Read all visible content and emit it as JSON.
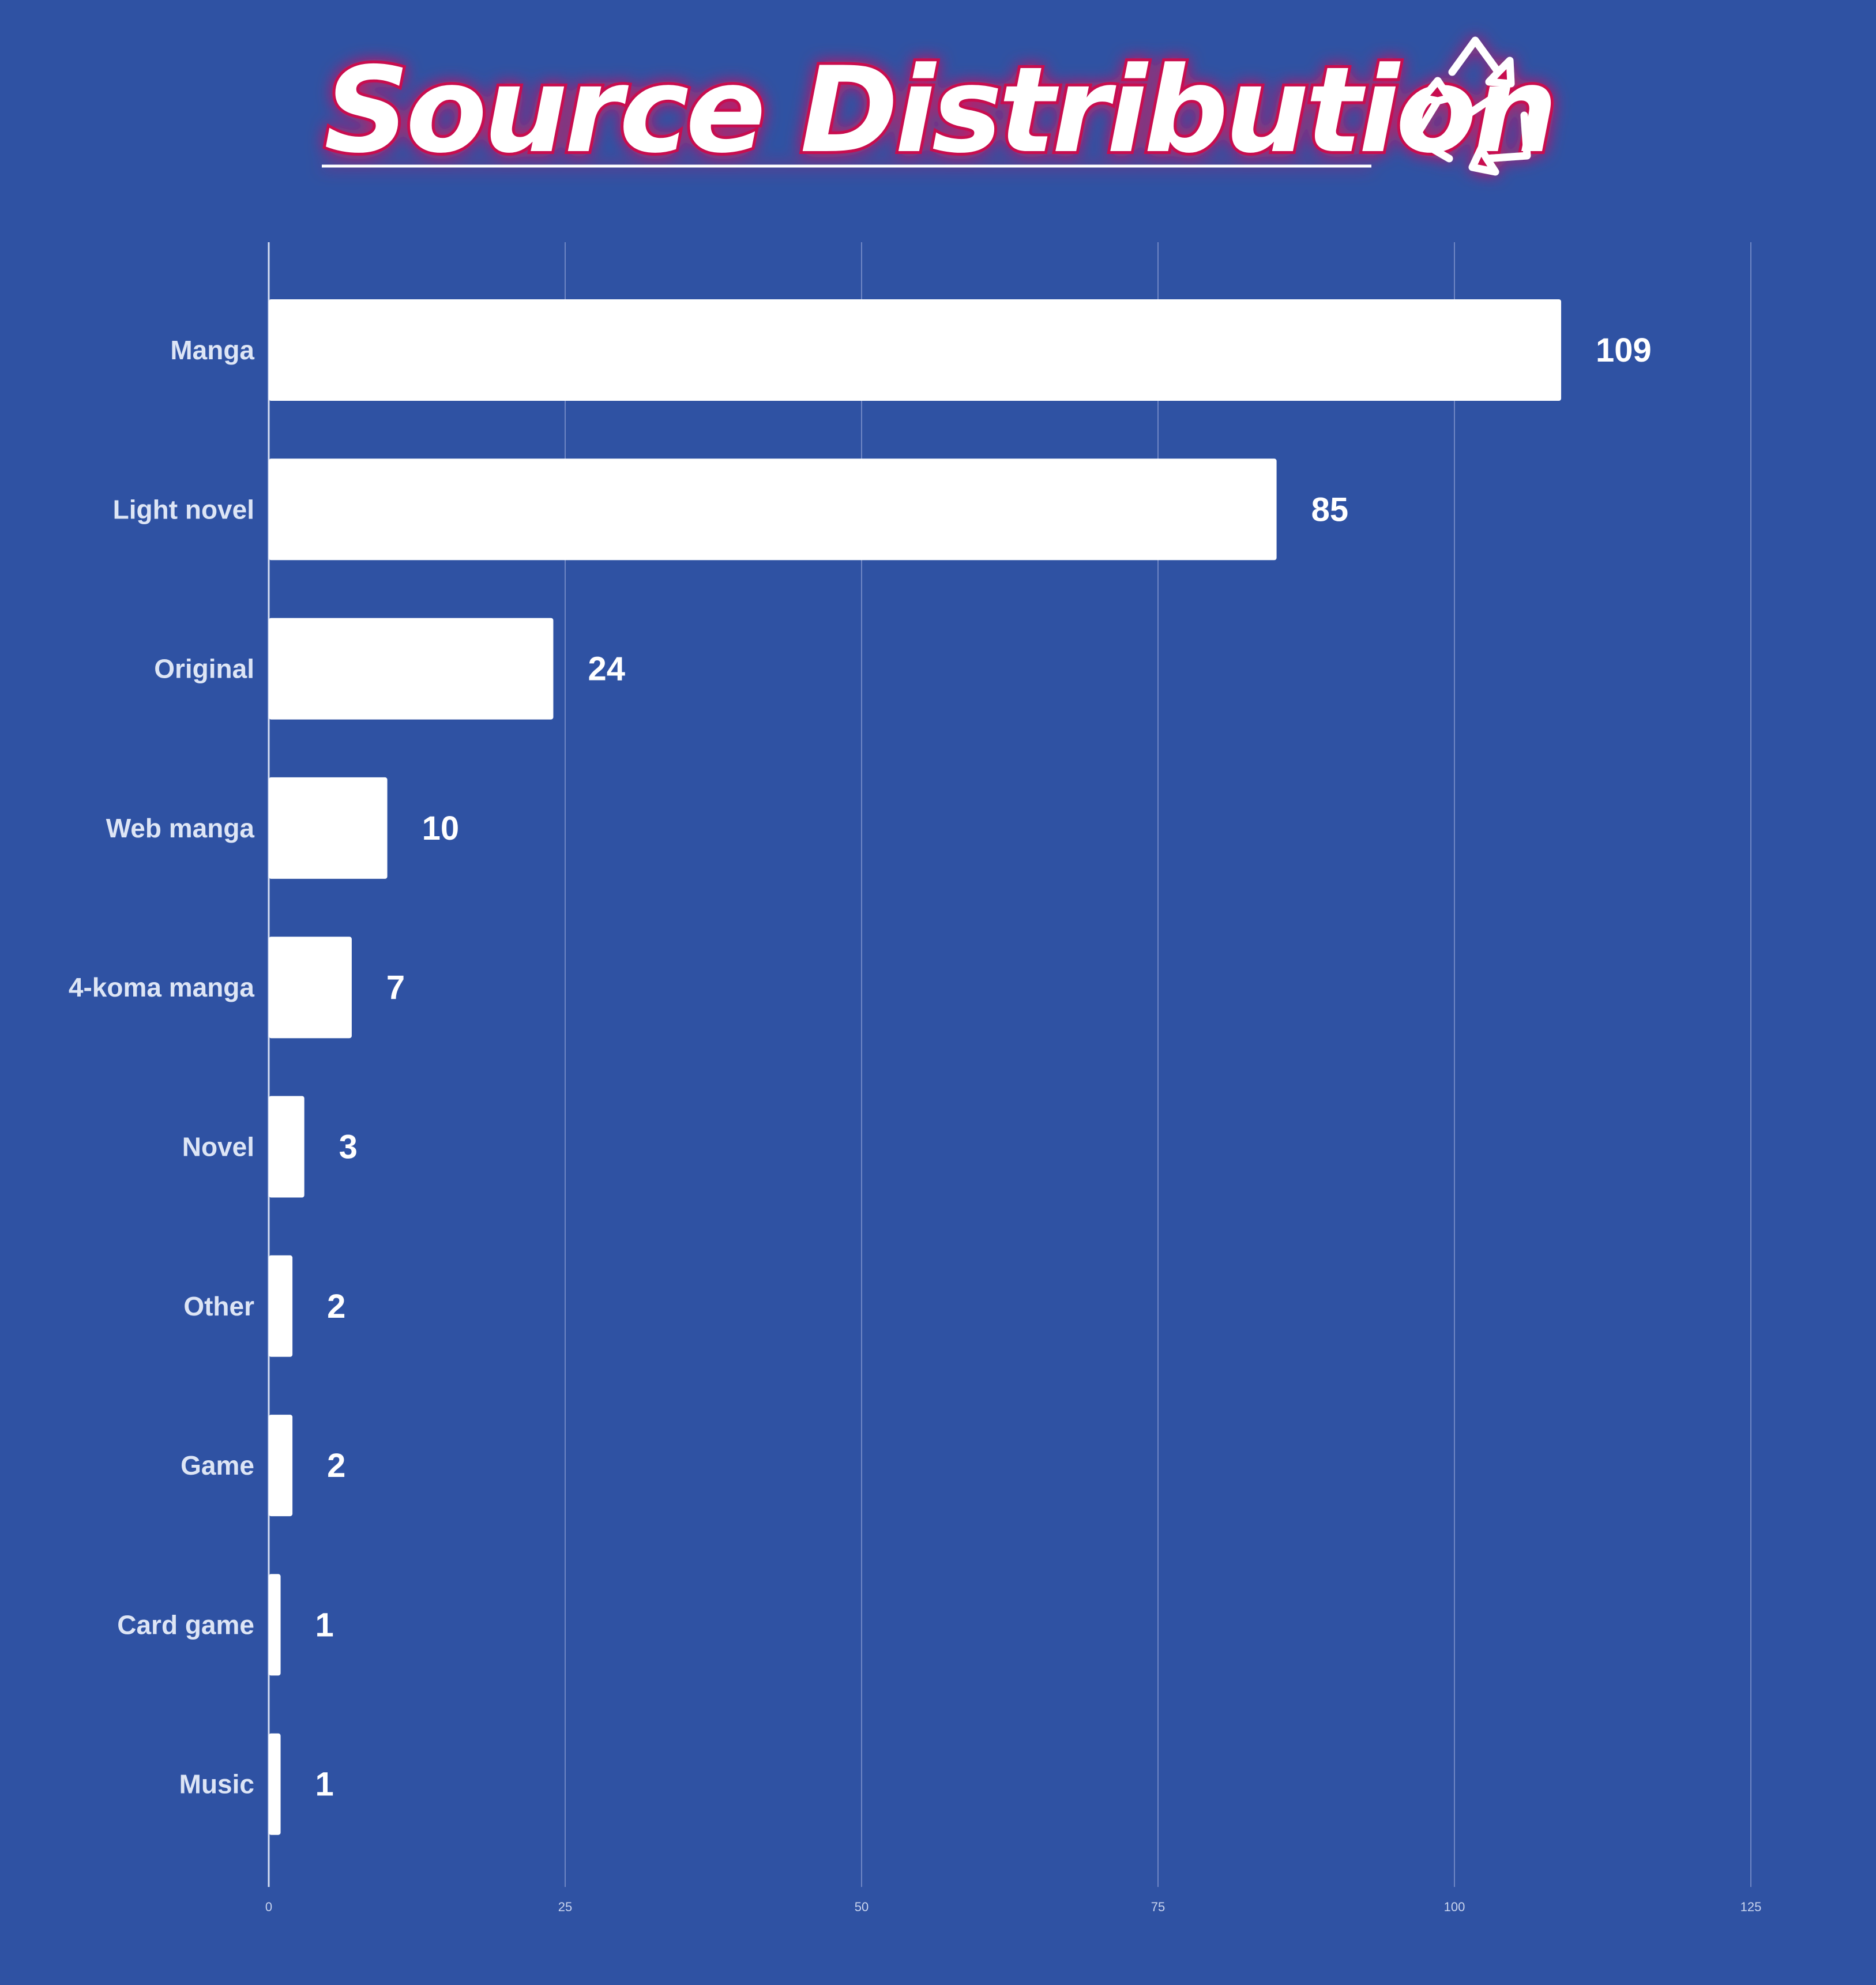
{
  "chart_data": {
    "type": "bar",
    "orientation": "horizontal",
    "title": "Source Distribution",
    "categories": [
      "Manga",
      "Light novel",
      "Original",
      "Web manga",
      "4-koma manga",
      "Novel",
      "Other",
      "Game",
      "Card game",
      "Music"
    ],
    "values": [
      109,
      85,
      24,
      10,
      7,
      3,
      2,
      2,
      1,
      1
    ],
    "value_labels": [
      "109",
      "85",
      "24",
      "10",
      "7",
      "3",
      "2",
      "2",
      "1",
      "1"
    ],
    "xlim": [
      0,
      125
    ],
    "xticks": [
      0,
      25,
      50,
      75,
      100,
      125
    ],
    "xtick_labels": [
      "0",
      "25",
      "50",
      "75",
      "100",
      "125"
    ],
    "grid": "vertical",
    "legend": "none",
    "title_icon": "recycle-icon",
    "colors": {
      "background": "#2f52a3",
      "bar": "#ffffff",
      "grid": "#6f86c4",
      "title_glow": "#c8104f"
    }
  }
}
